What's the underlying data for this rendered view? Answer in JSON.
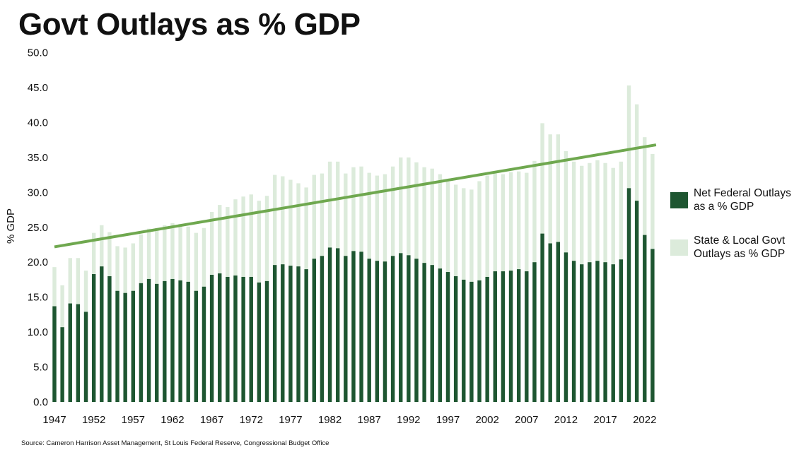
{
  "chart_data": {
    "type": "bar",
    "title": "Govt Outlays as % GDP",
    "xlabel": "",
    "ylabel": "% GDP",
    "ylim": [
      0,
      50
    ],
    "yticks": [
      "0.0",
      "5.0",
      "10.0",
      "15.0",
      "20.0",
      "25.0",
      "30.0",
      "35.0",
      "40.0",
      "45.0",
      "50.0"
    ],
    "ytick_values": [
      0,
      5,
      10,
      15,
      20,
      25,
      30,
      35,
      40,
      45,
      50
    ],
    "xtick_labels": [
      "1947",
      "1952",
      "1957",
      "1962",
      "1967",
      "1972",
      "1977",
      "1982",
      "1987",
      "1992",
      "1997",
      "2002",
      "2007",
      "2012",
      "2017",
      "2022"
    ],
    "grid": false,
    "legend_position": "right",
    "x": [
      1947,
      1948,
      1949,
      1950,
      1951,
      1952,
      1953,
      1954,
      1955,
      1956,
      1957,
      1958,
      1959,
      1960,
      1961,
      1962,
      1963,
      1964,
      1965,
      1966,
      1967,
      1968,
      1969,
      1970,
      1971,
      1972,
      1973,
      1974,
      1975,
      1976,
      1977,
      1978,
      1979,
      1980,
      1981,
      1982,
      1983,
      1984,
      1985,
      1986,
      1987,
      1988,
      1989,
      1990,
      1991,
      1992,
      1993,
      1994,
      1995,
      1996,
      1997,
      1998,
      1999,
      2000,
      2001,
      2002,
      2003,
      2004,
      2005,
      2006,
      2007,
      2008,
      2009,
      2010,
      2011,
      2012,
      2013,
      2014,
      2015,
      2016,
      2017,
      2018,
      2019,
      2020,
      2021,
      2022,
      2023
    ],
    "series": [
      {
        "name": "Net Federal Outlays as a % GDP",
        "color": "#1e5631",
        "values": [
          13.7,
          10.7,
          14.1,
          14.0,
          12.9,
          18.3,
          19.4,
          18.0,
          15.9,
          15.6,
          15.9,
          17.0,
          17.6,
          16.9,
          17.3,
          17.6,
          17.4,
          17.2,
          15.9,
          16.5,
          18.2,
          18.4,
          17.9,
          18.1,
          17.9,
          17.9,
          17.1,
          17.3,
          19.6,
          19.7,
          19.5,
          19.4,
          19.0,
          20.5,
          20.9,
          22.1,
          22.0,
          20.9,
          21.6,
          21.5,
          20.5,
          20.2,
          20.1,
          20.9,
          21.3,
          21.0,
          20.5,
          19.9,
          19.6,
          19.1,
          18.6,
          18.0,
          17.5,
          17.2,
          17.4,
          17.9,
          18.7,
          18.7,
          18.8,
          19.0,
          18.7,
          20.0,
          24.1,
          22.7,
          22.9,
          21.4,
          20.2,
          19.7,
          20.0,
          20.2,
          20.0,
          19.7,
          20.4,
          30.6,
          28.8,
          23.9,
          21.9
        ]
      },
      {
        "name": "State & Local Govt Outlays as % GDP",
        "color": "#dcebdb",
        "note": "values shown are total bar height (federal + state & local)",
        "values": [
          19.3,
          16.7,
          20.6,
          20.6,
          18.8,
          24.2,
          25.3,
          24.3,
          22.3,
          22.1,
          22.7,
          24.0,
          24.8,
          24.9,
          25.3,
          25.6,
          25.5,
          25.1,
          24.2,
          24.9,
          27.2,
          28.2,
          27.9,
          29.0,
          29.4,
          29.7,
          28.8,
          29.5,
          32.5,
          32.3,
          31.8,
          31.3,
          30.7,
          32.5,
          32.7,
          34.4,
          34.4,
          32.7,
          33.6,
          33.7,
          32.8,
          32.4,
          32.6,
          33.7,
          35.0,
          35.0,
          34.3,
          33.6,
          33.4,
          32.6,
          31.5,
          31.1,
          30.6,
          30.4,
          31.6,
          32.4,
          32.7,
          32.6,
          32.9,
          33.0,
          32.8,
          34.5,
          39.9,
          38.3,
          38.3,
          35.9,
          34.4,
          33.8,
          34.2,
          34.6,
          34.2,
          33.5,
          34.4,
          45.3,
          42.6,
          37.9,
          35.5
        ]
      },
      {
        "name": "Trend",
        "type": "line",
        "color": "#6fa84f",
        "values_start_end": [
          22.2,
          36.8
        ]
      }
    ]
  },
  "legend": {
    "items": [
      {
        "line1": "Net Federal Outlays",
        "line2": "as a % GDP",
        "color": "#1e5631"
      },
      {
        "line1": "State & Local Govt",
        "line2": "Outlays as % GDP",
        "color": "#dcebdb"
      }
    ]
  },
  "source": "Source: Cameron Harrison Asset Management, St Louis Federal Reserve, Congressional Budget Office"
}
